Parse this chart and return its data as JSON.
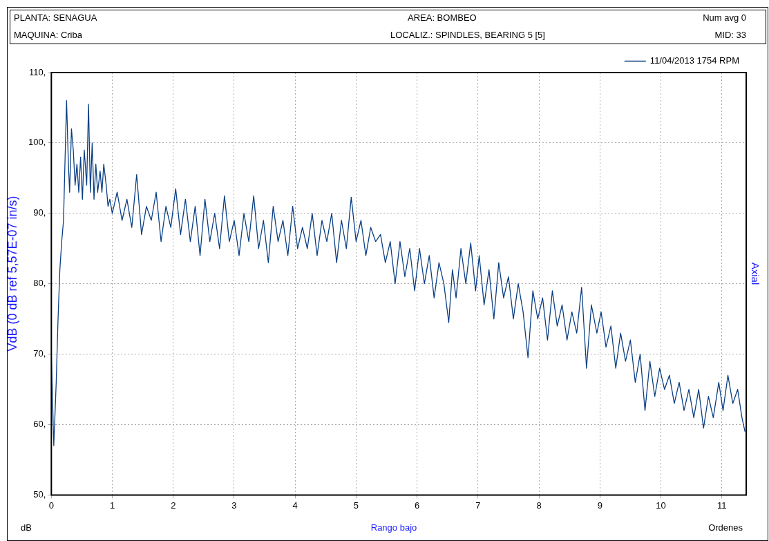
{
  "chart_data": {
    "type": "line",
    "xlabel": "Rango bajo",
    "ylabel": "VdB (0 dB ref 5,57E-07 in/s)",
    "annotations": [
      "PLANTA: SENAGUA",
      "AREA: BOMBEO",
      "Num avg 0",
      "MAQUINA: Criba",
      "LOCALIZ.: SPINDLES, BEARING 5 [5]",
      "MID: 33",
      "Axial",
      "dB",
      "Ordenes"
    ],
    "xlim": [
      0,
      11.4
    ],
    "xticks": [
      0,
      1,
      2,
      3,
      4,
      5,
      6,
      7,
      8,
      9,
      10,
      11
    ],
    "ylim": [
      50,
      110
    ],
    "yticks": [
      {
        "value": 50,
        "label": "50,"
      },
      {
        "value": 60,
        "label": "60,"
      },
      {
        "value": 70,
        "label": "70,"
      },
      {
        "value": 80,
        "label": "80,"
      },
      {
        "value": 90,
        "label": "90,"
      },
      {
        "value": 100,
        "label": "100,"
      },
      {
        "value": 110,
        "label": "110,"
      }
    ],
    "grid": true,
    "legend": "top right",
    "marker": "none",
    "line_style": "solid",
    "series": [
      {
        "name": "11/04/2013 1754 RPM",
        "color": "#0a3f84",
        "x": [
          0,
          0.04,
          0.08,
          0.11,
          0.14,
          0.17,
          0.2,
          0.22,
          0.25,
          0.28,
          0.3,
          0.33,
          0.36,
          0.39,
          0.42,
          0.45,
          0.48,
          0.51,
          0.54,
          0.58,
          0.61,
          0.64,
          0.67,
          0.7,
          0.73,
          0.76,
          0.8,
          0.83,
          0.86,
          0.9,
          0.93,
          0.96,
          1.0,
          1.08,
          1.16,
          1.24,
          1.32,
          1.4,
          1.48,
          1.56,
          1.64,
          1.72,
          1.8,
          1.88,
          1.96,
          2.04,
          2.12,
          2.2,
          2.28,
          2.36,
          2.44,
          2.52,
          2.6,
          2.68,
          2.76,
          2.84,
          2.92,
          3.0,
          3.08,
          3.16,
          3.24,
          3.32,
          3.4,
          3.48,
          3.56,
          3.64,
          3.72,
          3.8,
          3.88,
          3.96,
          4.04,
          4.12,
          4.2,
          4.28,
          4.36,
          4.44,
          4.52,
          4.6,
          4.68,
          4.76,
          4.84,
          4.92,
          5.0,
          5.08,
          5.16,
          5.24,
          5.32,
          5.4,
          5.48,
          5.56,
          5.64,
          5.72,
          5.8,
          5.88,
          5.96,
          6.04,
          6.12,
          6.2,
          6.28,
          6.36,
          6.44,
          6.52,
          6.58,
          6.64,
          6.72,
          6.8,
          6.88,
          6.96,
          7.02,
          7.1,
          7.18,
          7.26,
          7.34,
          7.42,
          7.5,
          7.58,
          7.66,
          7.74,
          7.82,
          7.9,
          7.98,
          8.06,
          8.14,
          8.22,
          8.3,
          8.38,
          8.46,
          8.54,
          8.62,
          8.7,
          8.78,
          8.86,
          8.95,
          9.02,
          9.1,
          9.18,
          9.26,
          9.34,
          9.42,
          9.5,
          9.58,
          9.66,
          9.74,
          9.82,
          9.9,
          9.98,
          10.06,
          10.14,
          10.22,
          10.3,
          10.38,
          10.46,
          10.54,
          10.62,
          10.7,
          10.78,
          10.86,
          10.95,
          11.02,
          11.1,
          11.18,
          11.26,
          11.33,
          11.38
        ],
        "values": [
          70,
          57,
          66,
          75,
          82,
          86,
          89,
          96,
          106,
          97,
          93,
          102,
          99,
          94,
          97,
          93,
          98,
          92,
          99,
          94,
          105.5,
          93,
          100,
          92,
          97,
          93,
          96,
          93,
          97,
          94,
          91,
          92,
          90,
          93,
          89,
          92,
          88,
          95.5,
          87,
          91,
          89,
          93,
          86,
          91,
          88,
          93.5,
          87,
          92,
          86,
          91,
          84,
          92,
          86,
          90,
          85,
          92.5,
          86,
          89,
          84,
          90,
          86,
          92.5,
          85,
          89,
          83,
          91,
          86,
          89,
          84,
          91,
          85,
          88,
          85,
          90,
          84,
          89,
          86,
          90,
          83,
          89,
          85,
          92.3,
          86,
          89,
          84,
          88,
          86,
          87,
          83,
          86,
          80,
          86,
          81,
          85,
          79,
          85,
          80,
          84,
          78,
          83,
          80,
          74.5,
          82,
          78,
          85,
          80,
          85.8,
          79,
          84,
          77,
          82,
          75,
          83,
          78,
          81,
          75,
          80,
          76,
          69.5,
          79,
          75,
          78,
          72,
          79,
          74,
          77,
          72,
          76,
          73,
          79.5,
          68,
          77,
          73,
          76,
          71,
          74,
          68,
          73,
          69,
          72,
          66,
          70,
          62,
          69,
          64,
          68,
          65,
          67,
          63,
          66,
          62,
          65,
          61,
          65,
          59.5,
          64,
          61,
          66,
          62,
          67,
          63,
          65,
          61,
          59
        ]
      }
    ]
  }
}
